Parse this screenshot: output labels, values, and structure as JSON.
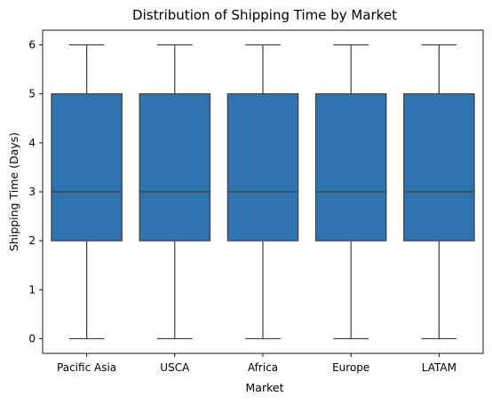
{
  "chart_data": {
    "type": "box",
    "title": "Distribution of Shipping Time by Market",
    "xlabel": "Market",
    "ylabel": "Shipping Time (Days)",
    "ylim": [
      -0.3,
      6.3
    ],
    "yticks": [
      0,
      1,
      2,
      3,
      4,
      5,
      6
    ],
    "grid": false,
    "color": "#2e75b0",
    "categories": [
      "Pacific Asia",
      "USCA",
      "Africa",
      "Europe",
      "LATAM"
    ],
    "boxes": [
      {
        "category": "Pacific Asia",
        "min": 0,
        "q1": 2,
        "median": 3,
        "q3": 5,
        "max": 6
      },
      {
        "category": "USCA",
        "min": 0,
        "q1": 2,
        "median": 3,
        "q3": 5,
        "max": 6
      },
      {
        "category": "Africa",
        "min": 0,
        "q1": 2,
        "median": 3,
        "q3": 5,
        "max": 6
      },
      {
        "category": "Europe",
        "min": 0,
        "q1": 2,
        "median": 3,
        "q3": 5,
        "max": 6
      },
      {
        "category": "LATAM",
        "min": 0,
        "q1": 2,
        "median": 3,
        "q3": 5,
        "max": 6
      }
    ]
  }
}
